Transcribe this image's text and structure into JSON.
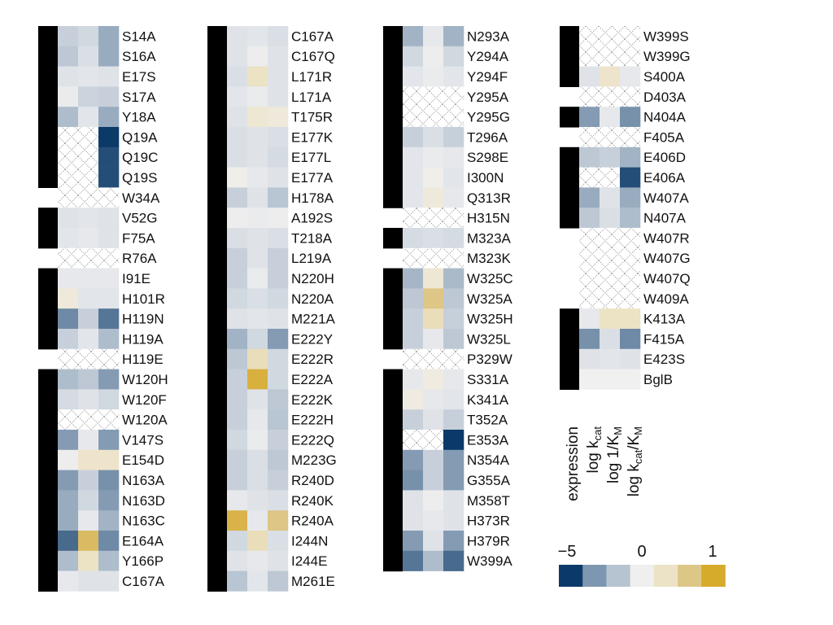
{
  "chart_data": {
    "type": "heatmap",
    "columns": [
      "expression",
      "log k_cat",
      "log 1/K_M",
      "log k_cat/K_M"
    ],
    "column_labels": [
      {
        "base": "expression",
        "sub": ""
      },
      {
        "base": "log k",
        "sub": "cat"
      },
      {
        "base": "log 1/K",
        "sub": "M"
      },
      {
        "base": "log k",
        "sub": "cat",
        "mid": "/K",
        "sub2": "M"
      }
    ],
    "missing_note": "null = not measured (hatched cell)",
    "colorbar": {
      "ticks": [
        "−5",
        "0",
        "1"
      ],
      "colors": [
        "#0b3a68",
        "#7d97b0",
        "#b6c4d2",
        "#efefef",
        "#ece3c7",
        "#ddc787",
        "#d6aa2b"
      ]
    },
    "blocks": [
      {
        "rows": [
          {
            "label": "S14A",
            "expressed": true,
            "values": [
              -1.0,
              -0.8,
              -2.0
            ]
          },
          {
            "label": "S16A",
            "expressed": true,
            "values": [
              -1.2,
              -0.6,
              -2.0
            ]
          },
          {
            "label": "E17S",
            "expressed": true,
            "values": [
              -0.5,
              -0.4,
              -0.5
            ]
          },
          {
            "label": "S17A",
            "expressed": true,
            "values": [
              -0.2,
              -0.9,
              -1.0
            ]
          },
          {
            "label": "Y18A",
            "expressed": true,
            "values": [
              -1.5,
              -0.4,
              -2.0
            ]
          },
          {
            "label": "Q19A",
            "expressed": true,
            "values": [
              null,
              null,
              -5.0
            ]
          },
          {
            "label": "Q19C",
            "expressed": true,
            "values": [
              null,
              null,
              -4.5
            ]
          },
          {
            "label": "Q19S",
            "expressed": true,
            "values": [
              null,
              null,
              -4.5
            ]
          },
          {
            "label": "W34A",
            "expressed": false,
            "values": [
              null,
              null,
              null
            ]
          },
          {
            "label": "V52G",
            "expressed": true,
            "values": [
              -0.5,
              -0.4,
              -0.5
            ]
          },
          {
            "label": "F75A",
            "expressed": true,
            "values": [
              -0.4,
              -0.3,
              -0.5
            ]
          },
          {
            "label": "R76A",
            "expressed": false,
            "values": [
              null,
              null,
              null
            ]
          },
          {
            "label": "I91E",
            "expressed": true,
            "values": [
              -0.3,
              -0.3,
              -0.3
            ]
          },
          {
            "label": "H101R",
            "expressed": true,
            "values": [
              0.15,
              -0.4,
              -0.4
            ]
          },
          {
            "label": "H119N",
            "expressed": true,
            "values": [
              -3.0,
              -1.0,
              -3.5
            ]
          },
          {
            "label": "H119A",
            "expressed": true,
            "values": [
              -1.0,
              -0.4,
              -1.5
            ]
          },
          {
            "label": "H119E",
            "expressed": false,
            "values": [
              null,
              null,
              null
            ]
          },
          {
            "label": "W120H",
            "expressed": true,
            "values": [
              -1.5,
              -1.2,
              -2.5
            ]
          },
          {
            "label": "W120F",
            "expressed": true,
            "values": [
              -0.7,
              -0.5,
              -0.8
            ]
          },
          {
            "label": "W120A",
            "expressed": true,
            "values": [
              null,
              null,
              null
            ]
          },
          {
            "label": "V147S",
            "expressed": true,
            "values": [
              -2.5,
              -0.3,
              -2.5
            ]
          },
          {
            "label": "E154D",
            "expressed": true,
            "values": [
              -0.1,
              0.25,
              0.25
            ]
          },
          {
            "label": "N163A",
            "expressed": true,
            "values": [
              -2.5,
              -1.0,
              -2.8
            ]
          },
          {
            "label": "N163D",
            "expressed": true,
            "values": [
              -2.0,
              -0.8,
              -2.5
            ]
          },
          {
            "label": "N163C",
            "expressed": true,
            "values": [
              -2.0,
              -0.3,
              -1.8
            ]
          },
          {
            "label": "E164A",
            "expressed": true,
            "values": [
              -3.8,
              0.75,
              -3.0
            ]
          },
          {
            "label": "Y166P",
            "expressed": true,
            "values": [
              -1.5,
              0.3,
              -1.5
            ]
          },
          {
            "label": "C167A",
            "expressed": true,
            "values": [
              -0.3,
              -0.5,
              -0.5
            ]
          }
        ]
      },
      {
        "rows": [
          {
            "label": "C167A",
            "expressed": true,
            "values": [
              -0.5,
              -0.4,
              -0.6
            ]
          },
          {
            "label": "C167Q",
            "expressed": true,
            "values": [
              -0.5,
              -0.1,
              -0.5
            ]
          },
          {
            "label": "L171R",
            "expressed": true,
            "values": [
              -0.6,
              0.3,
              -0.5
            ]
          },
          {
            "label": "L171A",
            "expressed": true,
            "values": [
              -0.4,
              -0.2,
              -0.5
            ]
          },
          {
            "label": "T175R",
            "expressed": true,
            "values": [
              -0.5,
              0.2,
              0.15
            ]
          },
          {
            "label": "E177K",
            "expressed": true,
            "values": [
              -0.6,
              -0.5,
              -0.6
            ]
          },
          {
            "label": "E177L",
            "expressed": true,
            "values": [
              -0.6,
              -0.5,
              -0.7
            ]
          },
          {
            "label": "E177A",
            "expressed": true,
            "values": [
              0.05,
              -0.3,
              -0.5
            ]
          },
          {
            "label": "H178A",
            "expressed": true,
            "values": [
              -1.0,
              -0.5,
              -1.3
            ]
          },
          {
            "label": "A192S",
            "expressed": true,
            "values": [
              -0.1,
              -0.2,
              -0.1
            ]
          },
          {
            "label": "T218A",
            "expressed": true,
            "values": [
              -0.6,
              -0.5,
              -0.6
            ]
          },
          {
            "label": "L219A",
            "expressed": true,
            "values": [
              -1.0,
              -0.5,
              -1.0
            ]
          },
          {
            "label": "N220H",
            "expressed": true,
            "values": [
              -1.0,
              -0.2,
              -1.0
            ]
          },
          {
            "label": "N220A",
            "expressed": true,
            "values": [
              -0.8,
              -0.6,
              -0.8
            ]
          },
          {
            "label": "M221A",
            "expressed": true,
            "values": [
              -0.5,
              -0.4,
              -0.5
            ]
          },
          {
            "label": "E222Y",
            "expressed": true,
            "values": [
              -1.8,
              -0.8,
              -2.5
            ]
          },
          {
            "label": "E222R",
            "expressed": true,
            "values": [
              -1.2,
              0.35,
              -0.8
            ]
          },
          {
            "label": "E222A",
            "expressed": true,
            "values": [
              -1.0,
              0.9,
              -0.8
            ]
          },
          {
            "label": "E222K",
            "expressed": true,
            "values": [
              -1.0,
              -0.5,
              -1.2
            ]
          },
          {
            "label": "E222H",
            "expressed": true,
            "values": [
              -1.0,
              -0.3,
              -1.3
            ]
          },
          {
            "label": "E222Q",
            "expressed": true,
            "values": [
              -0.8,
              -0.2,
              -1.0
            ]
          },
          {
            "label": "M223G",
            "expressed": true,
            "values": [
              -1.0,
              -0.6,
              -1.2
            ]
          },
          {
            "label": "R240D",
            "expressed": true,
            "values": [
              -1.0,
              -0.6,
              -1.0
            ]
          },
          {
            "label": "R240K",
            "expressed": true,
            "values": [
              -0.3,
              -0.5,
              -0.6
            ]
          },
          {
            "label": "R240A",
            "expressed": true,
            "values": [
              0.85,
              -0.3,
              0.6
            ]
          },
          {
            "label": "I244N",
            "expressed": true,
            "values": [
              -0.8,
              0.35,
              -0.6
            ]
          },
          {
            "label": "I244E",
            "expressed": true,
            "values": [
              -0.5,
              -0.3,
              -0.5
            ]
          },
          {
            "label": "M261E",
            "expressed": true,
            "values": [
              -1.3,
              -0.4,
              -1.2
            ]
          }
        ]
      },
      {
        "rows": [
          {
            "label": "N293A",
            "expressed": true,
            "values": [
              -1.8,
              -0.3,
              -1.8
            ]
          },
          {
            "label": "Y294A",
            "expressed": true,
            "values": [
              -0.8,
              -0.1,
              -0.8
            ]
          },
          {
            "label": "Y294F",
            "expressed": true,
            "values": [
              -0.4,
              -0.2,
              -0.4
            ]
          },
          {
            "label": "Y295A",
            "expressed": true,
            "values": [
              null,
              null,
              null
            ]
          },
          {
            "label": "Y295G",
            "expressed": true,
            "values": [
              null,
              null,
              null
            ]
          },
          {
            "label": "T296A",
            "expressed": true,
            "values": [
              -1.0,
              -0.6,
              -1.0
            ]
          },
          {
            "label": "S298E",
            "expressed": true,
            "values": [
              -0.4,
              -0.2,
              -0.3
            ]
          },
          {
            "label": "I300N",
            "expressed": true,
            "values": [
              -0.4,
              0.05,
              -0.4
            ]
          },
          {
            "label": "Q313R",
            "expressed": true,
            "values": [
              -0.4,
              0.15,
              -0.3
            ]
          },
          {
            "label": "H315N",
            "expressed": false,
            "values": [
              null,
              null,
              null
            ]
          },
          {
            "label": "M323A",
            "expressed": true,
            "values": [
              -0.7,
              -0.6,
              -0.7
            ]
          },
          {
            "label": "M323K",
            "expressed": false,
            "values": [
              null,
              null,
              null
            ]
          },
          {
            "label": "W325C",
            "expressed": true,
            "values": [
              -1.7,
              0.2,
              -1.6
            ]
          },
          {
            "label": "W325A",
            "expressed": true,
            "values": [
              -1.2,
              0.6,
              -1.2
            ]
          },
          {
            "label": "W325H",
            "expressed": true,
            "values": [
              -1.0,
              0.35,
              -1.0
            ]
          },
          {
            "label": "W325L",
            "expressed": true,
            "values": [
              -1.0,
              -0.3,
              -1.2
            ]
          },
          {
            "label": "P329W",
            "expressed": false,
            "values": [
              null,
              null,
              null
            ]
          },
          {
            "label": "S331A",
            "expressed": true,
            "values": [
              -0.3,
              0.1,
              -0.3
            ]
          },
          {
            "label": "K341A",
            "expressed": true,
            "values": [
              0.1,
              -0.3,
              -0.4
            ]
          },
          {
            "label": "T352A",
            "expressed": true,
            "values": [
              -1.0,
              -0.5,
              -1.0
            ]
          },
          {
            "label": "E353A",
            "expressed": true,
            "values": [
              null,
              null,
              -5.0
            ]
          },
          {
            "label": "N354A",
            "expressed": true,
            "values": [
              -2.5,
              -1.0,
              -2.5
            ]
          },
          {
            "label": "G355A",
            "expressed": true,
            "values": [
              -2.8,
              -1.0,
              -2.5
            ]
          },
          {
            "label": "M358T",
            "expressed": true,
            "values": [
              -0.5,
              -0.1,
              -0.5
            ]
          },
          {
            "label": "H373R",
            "expressed": true,
            "values": [
              -0.5,
              -0.3,
              -0.5
            ]
          },
          {
            "label": "H379R",
            "expressed": true,
            "values": [
              -2.5,
              -0.5,
              -2.5
            ]
          },
          {
            "label": "W399A",
            "expressed": true,
            "values": [
              -3.5,
              -1.5,
              -3.8
            ]
          }
        ]
      },
      {
        "rows": [
          {
            "label": "W399S",
            "expressed": true,
            "values": [
              null,
              null,
              null
            ]
          },
          {
            "label": "W399G",
            "expressed": true,
            "values": [
              null,
              null,
              null
            ]
          },
          {
            "label": "S400A",
            "expressed": true,
            "values": [
              -0.5,
              0.25,
              -0.3
            ]
          },
          {
            "label": "D403A",
            "expressed": false,
            "values": [
              null,
              null,
              null
            ]
          },
          {
            "label": "N404A",
            "expressed": true,
            "values": [
              -2.5,
              -0.3,
              -2.8
            ]
          },
          {
            "label": "F405A",
            "expressed": false,
            "values": [
              null,
              null,
              null
            ]
          },
          {
            "label": "E406D",
            "expressed": true,
            "values": [
              -1.2,
              -1.0,
              -1.8
            ]
          },
          {
            "label": "E406A",
            "expressed": true,
            "values": [
              null,
              null,
              -4.5
            ]
          },
          {
            "label": "W407A",
            "expressed": true,
            "values": [
              -2.0,
              -0.5,
              -2.0
            ]
          },
          {
            "label": "N407A",
            "expressed": true,
            "values": [
              -1.2,
              -0.6,
              -1.5
            ]
          },
          {
            "label": "W407R",
            "expressed": false,
            "values": [
              null,
              null,
              null
            ]
          },
          {
            "label": "W407G",
            "expressed": false,
            "values": [
              null,
              null,
              null
            ]
          },
          {
            "label": "W407Q",
            "expressed": false,
            "values": [
              null,
              null,
              null
            ]
          },
          {
            "label": "W409A",
            "expressed": false,
            "values": [
              null,
              null,
              null
            ]
          },
          {
            "label": "K413A",
            "expressed": true,
            "values": [
              -0.3,
              0.3,
              0.3
            ]
          },
          {
            "label": "F415A",
            "expressed": true,
            "values": [
              -2.8,
              -0.6,
              -3.0
            ]
          },
          {
            "label": "E423S",
            "expressed": true,
            "values": [
              -0.5,
              -0.4,
              -0.5
            ]
          },
          {
            "label": "BglB",
            "expressed": true,
            "values": [
              0.0,
              0.0,
              0.0
            ]
          }
        ]
      }
    ]
  }
}
